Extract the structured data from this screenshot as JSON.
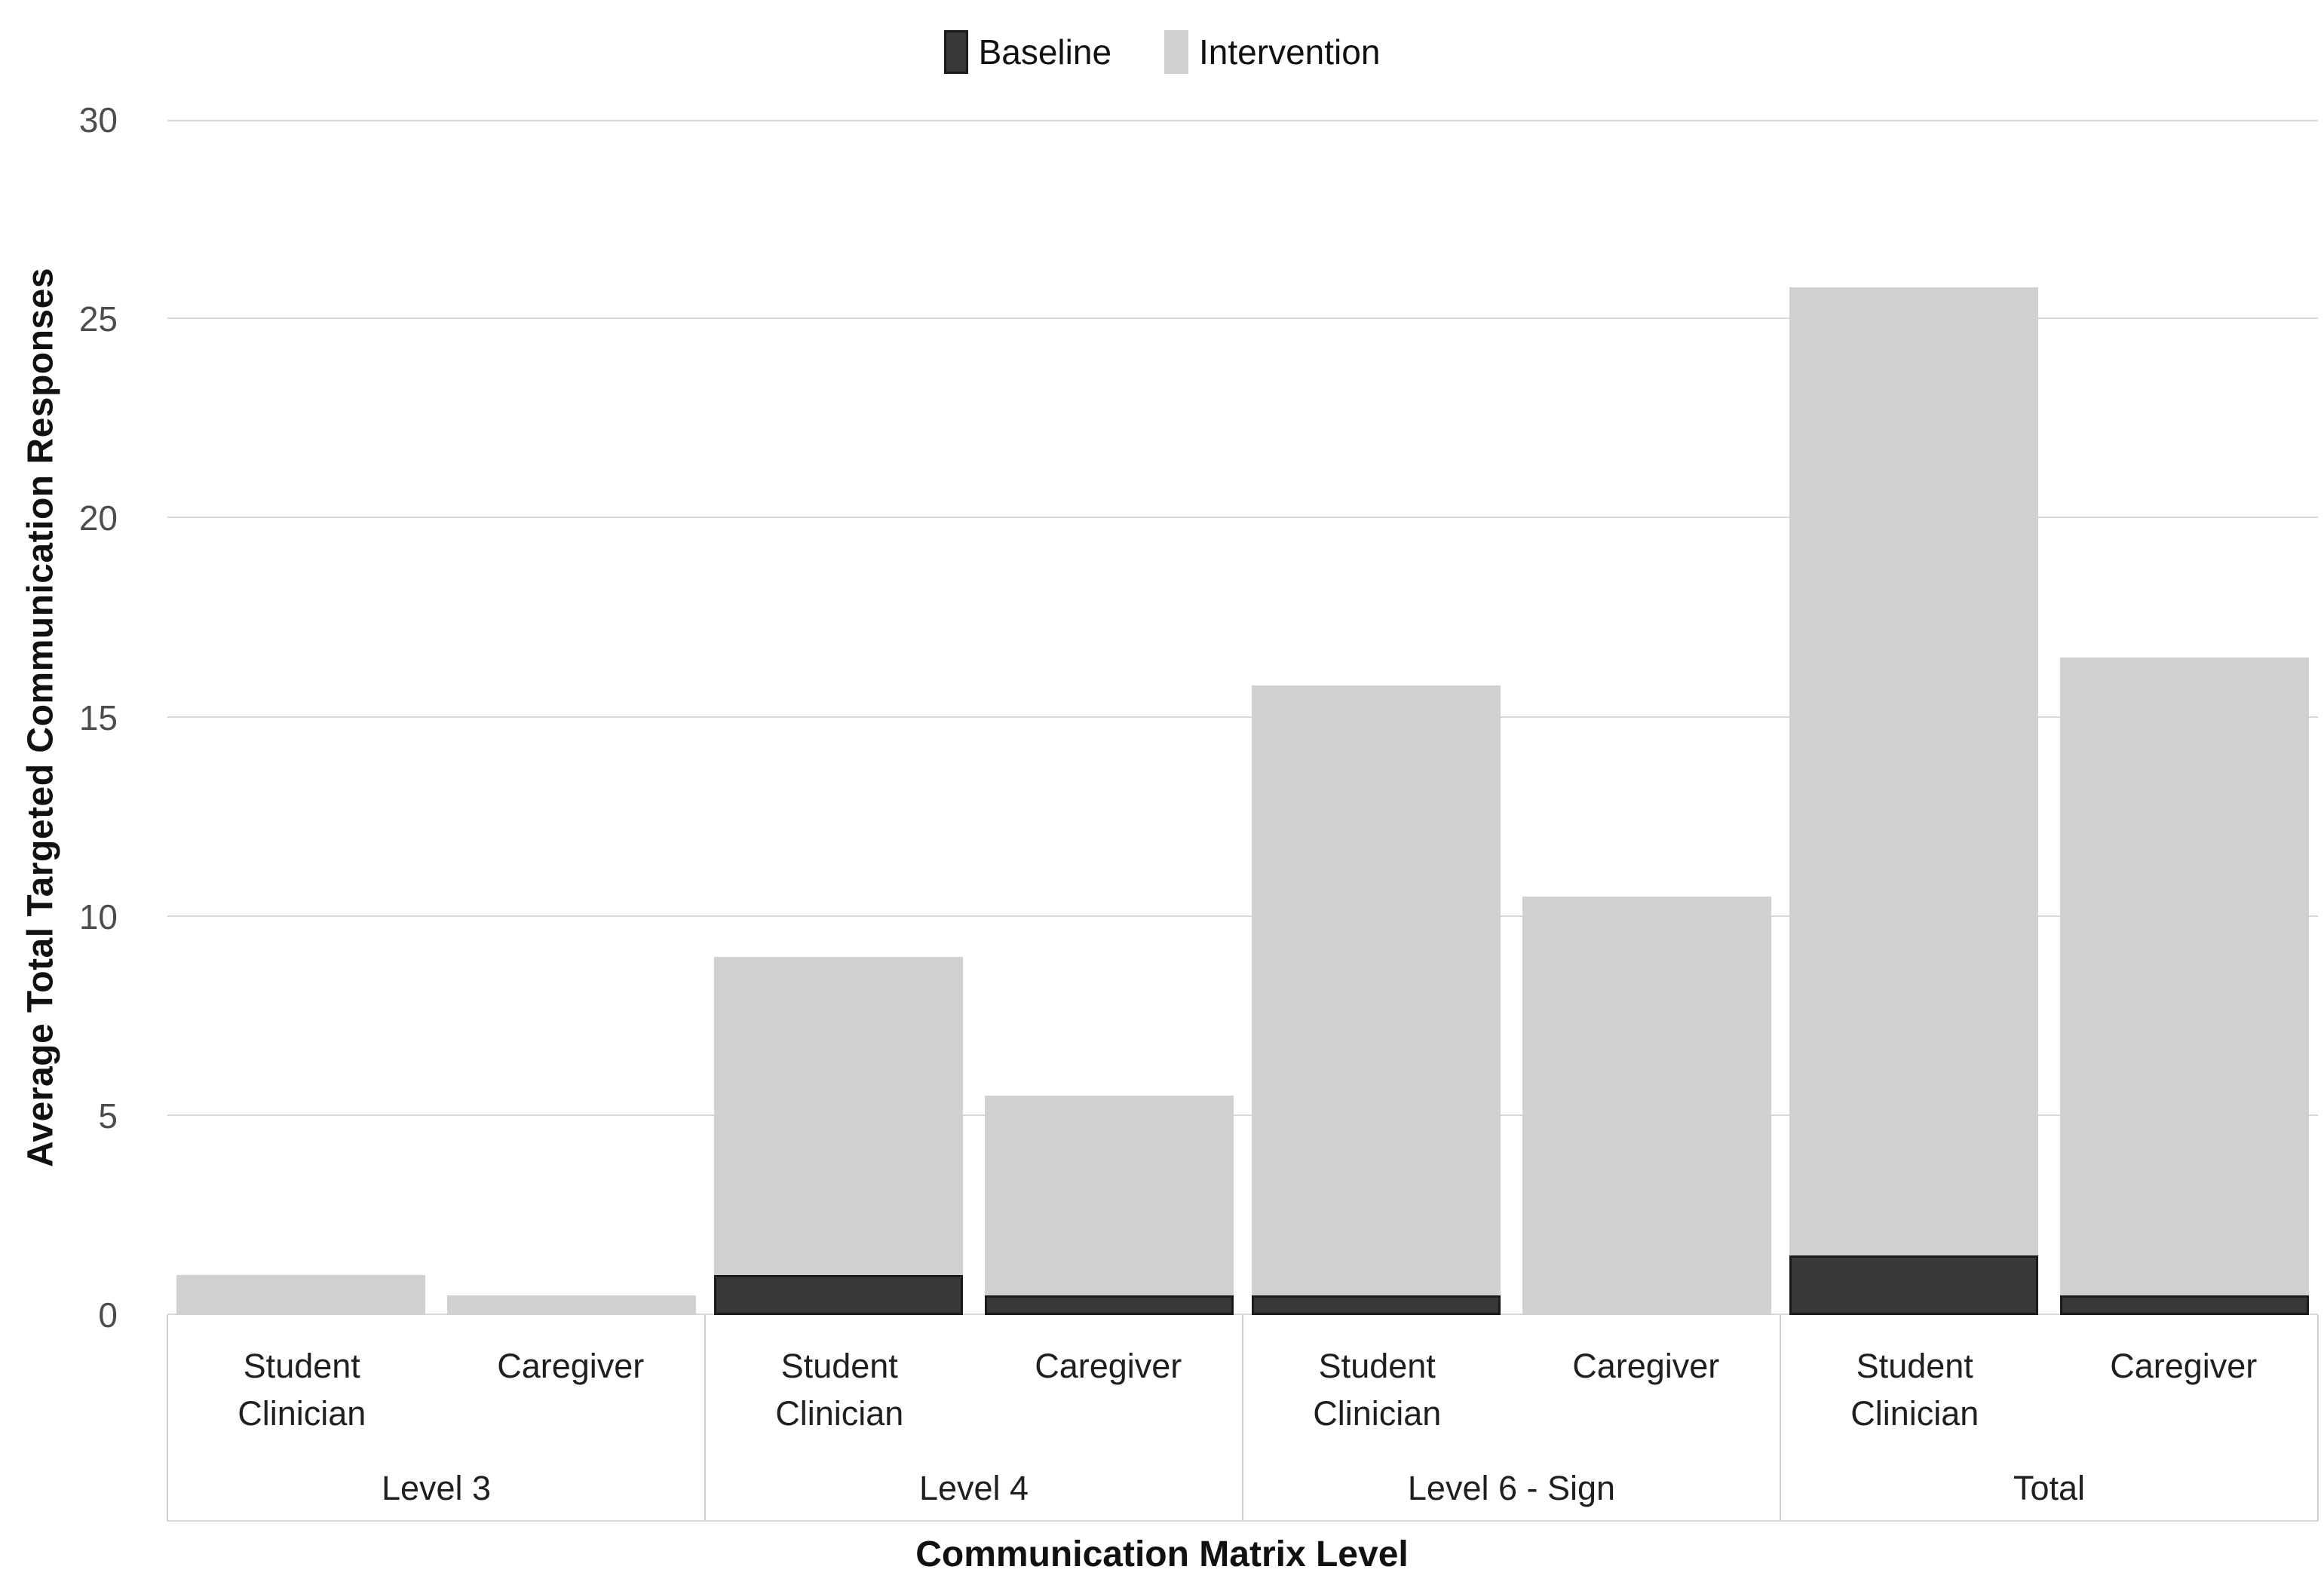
{
  "legend": {
    "items": [
      {
        "label": "Baseline",
        "marker": "baseline-swatch",
        "color": "#383838",
        "border": "#1b1b1b"
      },
      {
        "label": "Intervention",
        "marker": "intervention-swatch",
        "color": "#d0d0d0",
        "border": "#d0d0d0"
      }
    ]
  },
  "y_axis": {
    "title": "Average Total Targeted Communication Responses",
    "ticks": [
      0,
      5,
      10,
      15,
      20,
      25,
      30
    ]
  },
  "x_axis": {
    "title": "Communication Matrix Level"
  },
  "chart_data": {
    "type": "bar",
    "stacked": true,
    "title": "",
    "xlabel": "Communication Matrix Level",
    "ylabel": "Average Total Targeted Communication Responses",
    "ylim": [
      0,
      30
    ],
    "y_tick_step": 5,
    "grid": true,
    "legend_position": "top-center",
    "series_names": [
      "Baseline",
      "Intervention"
    ],
    "series_colors": {
      "Baseline": "#383838",
      "Intervention": "#d0d0d0"
    },
    "groups": [
      {
        "label": "Level 3",
        "bars": [
          {
            "label": "Student Clinician",
            "baseline": 0,
            "intervention": 1.0,
            "stack_top": 1.0
          },
          {
            "label": "Caregiver",
            "baseline": 0,
            "intervention": 0.5,
            "stack_top": 0.5
          }
        ]
      },
      {
        "label": "Level 4",
        "bars": [
          {
            "label": "Student Clinician",
            "baseline": 1.0,
            "intervention": 8.0,
            "stack_top": 9.0
          },
          {
            "label": "Caregiver",
            "baseline": 0.5,
            "intervention": 5.0,
            "stack_top": 5.5
          }
        ]
      },
      {
        "label": "Level 6 - Sign",
        "bars": [
          {
            "label": "Student Clinician",
            "baseline": 0.5,
            "intervention": 15.3,
            "stack_top": 15.8
          },
          {
            "label": "Caregiver",
            "baseline": 0,
            "intervention": 10.5,
            "stack_top": 10.5
          }
        ]
      },
      {
        "label": "Total",
        "bars": [
          {
            "label": "Student Clinician",
            "baseline": 1.5,
            "intervention": 24.3,
            "stack_top": 25.8
          },
          {
            "label": "Caregiver",
            "baseline": 0.5,
            "intervention": 16.0,
            "stack_top": 16.5
          }
        ]
      }
    ]
  },
  "colors": {
    "baseline_fill": "#383838",
    "baseline_border": "#1b1b1b",
    "intervention_fill": "#d0d0d0",
    "gridline": "#d9d9d9",
    "divider": "#cfcfcf",
    "tick_text": "#4d4d4d",
    "label_text": "#1f1f1f",
    "title_text": "#111111",
    "background": "#ffffff"
  }
}
